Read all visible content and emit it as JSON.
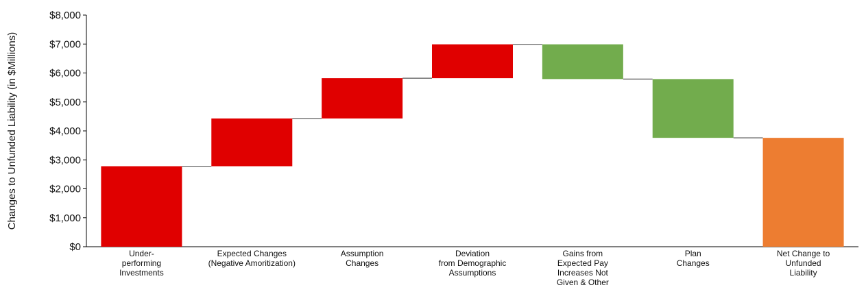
{
  "chart_data": {
    "type": "waterfall",
    "title": "",
    "ylabel": "Changes to Unfunded Liability (in $Millions)",
    "ylim": [
      0,
      8000
    ],
    "yticks": [
      {
        "value": 0,
        "label": "$0"
      },
      {
        "value": 1000,
        "label": "$1,000"
      },
      {
        "value": 2000,
        "label": "$2,000"
      },
      {
        "value": 3000,
        "label": "$3,000"
      },
      {
        "value": 4000,
        "label": "$4,000"
      },
      {
        "value": 5000,
        "label": "$5,000"
      },
      {
        "value": 6000,
        "label": "$6,000"
      },
      {
        "value": 7000,
        "label": "$7,000"
      },
      {
        "value": 8000,
        "label": "$8,000"
      }
    ],
    "grid": false,
    "bars": [
      {
        "label": [
          "Under-",
          "performing",
          "Investments"
        ],
        "start": 0,
        "end": 2780,
        "color": "#e00000"
      },
      {
        "label": [
          "Expected Changes",
          "(Negative Amoritization)"
        ],
        "start": 2780,
        "end": 4430,
        "color": "#e00000"
      },
      {
        "label": [
          "Assumption",
          "Changes"
        ],
        "start": 4430,
        "end": 5820,
        "color": "#e00000"
      },
      {
        "label": [
          "Deviation",
          "from Demographic",
          "Assumptions"
        ],
        "start": 5820,
        "end": 6990,
        "color": "#e00000"
      },
      {
        "label": [
          "Gains from",
          "Expected Pay",
          "Increases Not",
          "Given & Other"
        ],
        "start": 6990,
        "end": 5790,
        "color": "#72ac4d"
      },
      {
        "label": [
          "Plan",
          "Changes"
        ],
        "start": 5790,
        "end": 3760,
        "color": "#72ac4d"
      },
      {
        "label": [
          "Net Change to",
          "Unfunded",
          "Liability"
        ],
        "start": 0,
        "end": 3760,
        "color": "#ed7d31"
      }
    ]
  }
}
